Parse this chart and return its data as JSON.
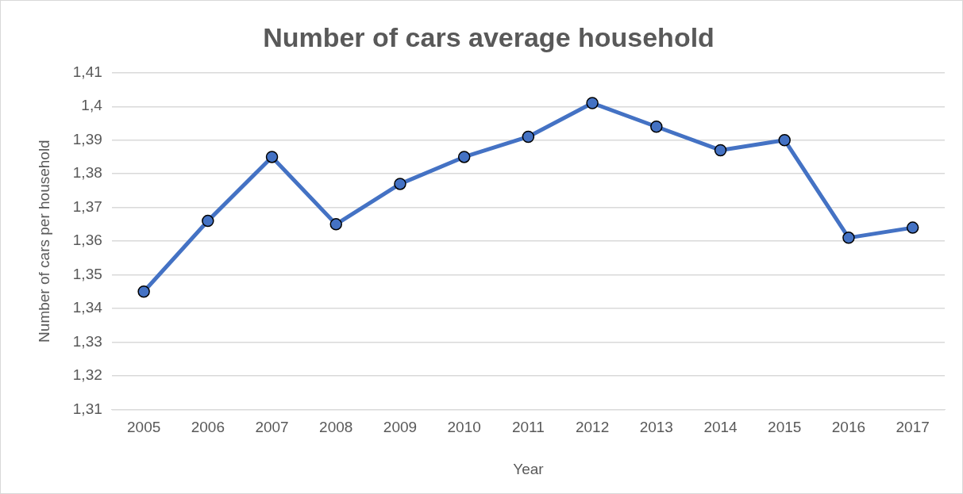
{
  "chart_data": {
    "type": "line",
    "title": "Number of cars average household",
    "xlabel": "Year",
    "ylabel": "Number of cars per household",
    "categories": [
      "2005",
      "2006",
      "2007",
      "2008",
      "2009",
      "2010",
      "2011",
      "2012",
      "2013",
      "2014",
      "2015",
      "2016",
      "2017"
    ],
    "series": [
      {
        "color": "#4472c4",
        "values": [
          1.345,
          1.366,
          1.385,
          1.365,
          1.377,
          1.385,
          1.391,
          1.401,
          1.394,
          1.387,
          1.39,
          1.361,
          1.364
        ]
      }
    ],
    "ylim": [
      1.31,
      1.41
    ],
    "yticks": [
      {
        "value": 1.31,
        "label": "1,31"
      },
      {
        "value": 1.32,
        "label": "1,32"
      },
      {
        "value": 1.33,
        "label": "1,33"
      },
      {
        "value": 1.34,
        "label": "1,34"
      },
      {
        "value": 1.35,
        "label": "1,35"
      },
      {
        "value": 1.36,
        "label": "1,36"
      },
      {
        "value": 1.37,
        "label": "1,37"
      },
      {
        "value": 1.38,
        "label": "1,38"
      },
      {
        "value": 1.39,
        "label": "1,39"
      },
      {
        "value": 1.4,
        "label": "1,4"
      },
      {
        "value": 1.41,
        "label": "1,41"
      }
    ],
    "grid": "y",
    "legend": false,
    "marker": "circle",
    "line_style": "solid"
  }
}
